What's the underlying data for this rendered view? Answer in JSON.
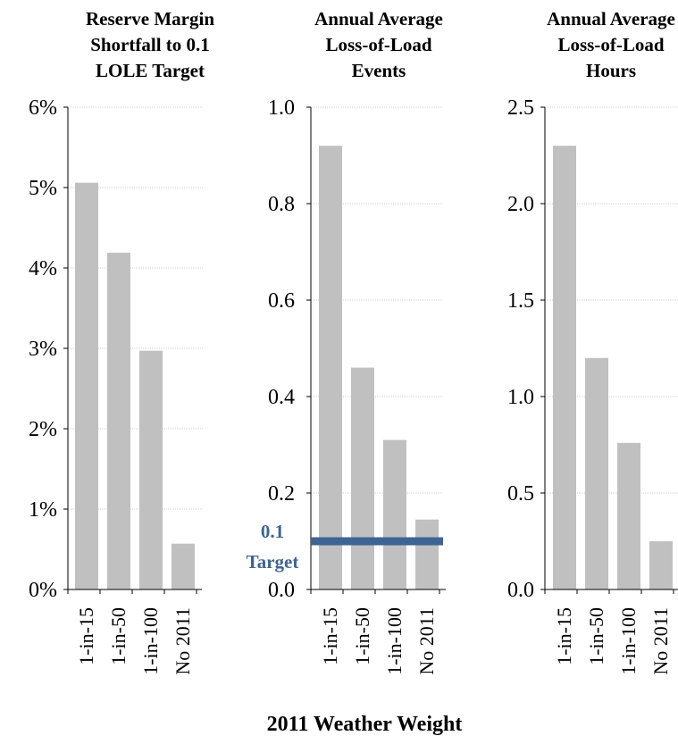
{
  "x_axis_title": "2011 Weather Weight",
  "colors": {
    "bar": "#c0c0c0",
    "target_line": "#3d6494",
    "target_text": "#3d6494",
    "axis": "#000000",
    "grid": "#d0d0d0"
  },
  "chart_data": [
    {
      "type": "bar",
      "title": [
        "Reserve Margin",
        "Shortfall to 0.1",
        "LOLE Target"
      ],
      "categories": [
        "1-in-15",
        "1-in-50",
        "1-in-100",
        "No 2011"
      ],
      "values": [
        0.0506,
        0.0419,
        0.0297,
        0.0057
      ],
      "ylim": [
        0,
        0.06
      ],
      "yticks": [
        "0%",
        "1%",
        "2%",
        "3%",
        "4%",
        "5%",
        "6%"
      ],
      "grid": true
    },
    {
      "type": "bar",
      "title": [
        "Annual Average",
        "Loss-of-Load",
        "Events"
      ],
      "categories": [
        "1-in-15",
        "1-in-50",
        "1-in-100",
        "No 2011"
      ],
      "values": [
        0.92,
        0.46,
        0.31,
        0.145
      ],
      "ylim": [
        0,
        1.0
      ],
      "yticks": [
        "0.0",
        "0.2",
        "0.4",
        "0.6",
        "0.8",
        "1.0"
      ],
      "grid": true,
      "target": {
        "value": 0.1,
        "label": [
          "0.1",
          "Target"
        ]
      }
    },
    {
      "type": "bar",
      "title": [
        "Annual Average",
        "Loss-of-Load",
        "Hours"
      ],
      "categories": [
        "1-in-15",
        "1-in-50",
        "1-in-100",
        "No 2011"
      ],
      "values": [
        2.3,
        1.2,
        0.76,
        0.25
      ],
      "ylim": [
        0,
        2.5
      ],
      "yticks": [
        "0.0",
        "0.5",
        "1.0",
        "1.5",
        "2.0",
        "2.5"
      ],
      "grid": true
    }
  ]
}
